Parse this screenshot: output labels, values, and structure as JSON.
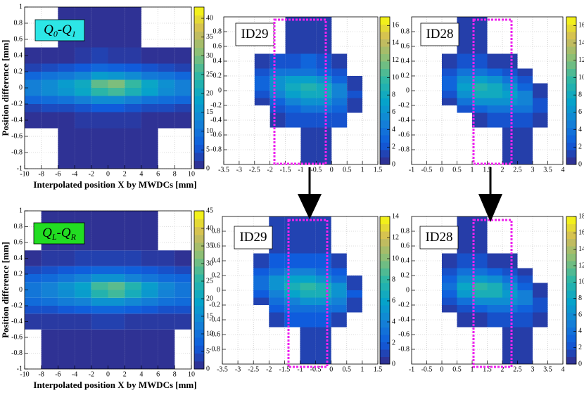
{
  "chart_data": [
    {
      "type": "heatmap",
      "label": [
        "Q",
        "0",
        "-Q",
        "1"
      ],
      "label_color": "#2de6e6",
      "ylabel": "Position difference [mm]",
      "xlabel": "Interpolated position X by MWDCs [mm]",
      "xlim": [
        -10,
        10
      ],
      "ylim": [
        -1,
        1
      ],
      "zlim": [
        0,
        43
      ],
      "grid": true,
      "xticks": [
        -10,
        -8,
        -6,
        -4,
        -2,
        0,
        2,
        4,
        6,
        8,
        10
      ],
      "yticks": [
        -1,
        -0.8,
        -0.6,
        -0.4,
        -0.2,
        0,
        0.2,
        0.4,
        0.6,
        0.8,
        1
      ],
      "zticks": [
        0,
        5,
        10,
        15,
        20,
        25,
        30,
        35,
        40
      ],
      "xbins": [
        -10,
        -8,
        -6,
        -4,
        -2,
        0,
        2,
        4,
        6,
        8,
        10
      ],
      "ybins": [
        -1,
        -0.5,
        -0.3,
        -0.2,
        -0.1,
        0,
        0.1,
        0.2,
        0.3,
        0.5,
        1
      ],
      "z": [
        [
          0,
          0,
          1,
          1,
          1,
          1,
          1,
          1,
          0,
          0
        ],
        [
          1,
          1,
          1,
          2,
          2,
          2,
          2,
          1,
          1,
          1
        ],
        [
          3,
          4,
          4,
          5,
          6,
          6,
          5,
          4,
          4,
          3
        ],
        [
          8,
          9,
          10,
          12,
          14,
          14,
          12,
          10,
          9,
          8
        ],
        [
          12,
          14,
          16,
          19,
          24,
          26,
          22,
          18,
          14,
          12
        ],
        [
          12,
          14,
          17,
          20,
          28,
          30,
          25,
          19,
          15,
          12
        ],
        [
          8,
          10,
          11,
          13,
          17,
          16,
          14,
          11,
          10,
          8
        ],
        [
          3,
          4,
          5,
          6,
          8,
          7,
          6,
          5,
          4,
          3
        ],
        [
          1,
          1,
          1,
          2,
          3,
          2,
          2,
          1,
          1,
          1
        ],
        [
          0,
          0,
          1,
          1,
          1,
          1,
          1,
          0,
          0,
          0
        ]
      ]
    },
    {
      "type": "heatmap",
      "label": [
        "ID29"
      ],
      "label_color": "#ffffff",
      "xlim": [
        -3.5,
        1.5
      ],
      "ylim": [
        -1,
        1
      ],
      "zlim": [
        0,
        17
      ],
      "grid": true,
      "xticks": [
        -3.5,
        -3,
        -2.5,
        -2,
        -1.5,
        -1,
        -0.5,
        0,
        0.5,
        1,
        1.5
      ],
      "yticks": [
        -0.8,
        -0.6,
        -0.4,
        -0.2,
        0,
        0.2,
        0.4,
        0.6,
        0.8
      ],
      "zticks": [
        0,
        2,
        4,
        6,
        8,
        10,
        12,
        14,
        16
      ],
      "xbins": [
        -3.5,
        -3,
        -2.5,
        -2,
        -1.5,
        -1,
        -0.5,
        0,
        0.5,
        1,
        1.5
      ],
      "ybins": [
        -1,
        -0.5,
        -0.3,
        -0.2,
        -0.1,
        0,
        0.1,
        0.2,
        0.3,
        0.5,
        1
      ],
      "z": [
        [
          0,
          0,
          0,
          0,
          0,
          1,
          1,
          0,
          0,
          0
        ],
        [
          0,
          0,
          0,
          1,
          2,
          2,
          2,
          2,
          0,
          0
        ],
        [
          0,
          0,
          0,
          2,
          3,
          4,
          4,
          3,
          1,
          0
        ],
        [
          0,
          0,
          1,
          3,
          5,
          6,
          6,
          4,
          1,
          0
        ],
        [
          0,
          0,
          2,
          5,
          7,
          8,
          8,
          5,
          2,
          0
        ],
        [
          0,
          0,
          3,
          6,
          8,
          9,
          8,
          5,
          1,
          0
        ],
        [
          0,
          0,
          3,
          6,
          7,
          7,
          6,
          3,
          1,
          0
        ],
        [
          0,
          0,
          2,
          4,
          4,
          4,
          3,
          2,
          0,
          0
        ],
        [
          0,
          0,
          1,
          2,
          2,
          3,
          2,
          1,
          0,
          0
        ],
        [
          0,
          0,
          0,
          0,
          1,
          1,
          1,
          0,
          0,
          0
        ]
      ]
    },
    {
      "type": "heatmap",
      "label": [
        "ID28"
      ],
      "label_color": "#ffffff",
      "xlim": [
        -1,
        4
      ],
      "ylim": [
        -1,
        1
      ],
      "zlim": [
        0,
        17
      ],
      "grid": true,
      "xticks": [
        -1,
        -0.5,
        0,
        0.5,
        1,
        1.5,
        2,
        2.5,
        3,
        3.5,
        4
      ],
      "yticks": [
        -0.8,
        -0.6,
        -0.4,
        -0.2,
        0,
        0.2,
        0.4,
        0.6,
        0.8
      ],
      "zticks": [
        0,
        2,
        4,
        6,
        8,
        10,
        12,
        14,
        16
      ],
      "xbins": [
        -1,
        -0.5,
        0,
        0.5,
        1,
        1.5,
        2,
        2.5,
        3,
        3.5,
        4
      ],
      "ybins": [
        -1,
        -0.5,
        -0.3,
        -0.2,
        -0.1,
        0,
        0.1,
        0.2,
        0.3,
        0.5,
        1
      ],
      "z": [
        [
          0,
          0,
          0,
          0,
          0,
          0,
          1,
          1,
          0,
          0
        ],
        [
          0,
          0,
          0,
          0,
          1,
          2,
          2,
          2,
          1,
          0
        ],
        [
          0,
          0,
          0,
          2,
          3,
          4,
          4,
          4,
          2,
          0
        ],
        [
          0,
          0,
          1,
          4,
          6,
          6,
          6,
          5,
          2,
          0
        ],
        [
          0,
          0,
          2,
          6,
          8,
          8,
          7,
          5,
          1,
          0
        ],
        [
          0,
          0,
          3,
          7,
          9,
          8,
          6,
          3,
          1,
          0
        ],
        [
          0,
          0,
          3,
          6,
          7,
          6,
          4,
          2,
          0,
          0
        ],
        [
          0,
          0,
          2,
          4,
          4,
          3,
          2,
          1,
          0,
          0
        ],
        [
          0,
          0,
          1,
          2,
          2,
          1,
          1,
          0,
          0,
          0
        ],
        [
          0,
          0,
          0,
          1,
          1,
          0,
          0,
          0,
          0,
          0
        ]
      ]
    },
    {
      "type": "heatmap",
      "label": [
        "Q",
        "L",
        "-Q",
        "R"
      ],
      "label_color": "#22dd22",
      "ylabel": "Position difference [mm]",
      "xlabel": "Interpolated position X by MWDCs [mm]",
      "xlim": [
        -10,
        10
      ],
      "ylim": [
        -1,
        1
      ],
      "zlim": [
        0,
        45
      ],
      "grid": true,
      "xticks": [
        -10,
        -8,
        -6,
        -4,
        -2,
        0,
        2,
        4,
        6,
        8,
        10
      ],
      "yticks": [
        -1,
        -0.8,
        -0.6,
        -0.4,
        -0.2,
        0,
        0.2,
        0.4,
        0.6,
        0.8,
        1
      ],
      "zticks": [
        0,
        5,
        10,
        15,
        20,
        25,
        30,
        35,
        40,
        45
      ],
      "xbins": [
        -10,
        -8,
        -6,
        -4,
        -2,
        0,
        2,
        4,
        6,
        8,
        10
      ],
      "ybins": [
        -1,
        -0.5,
        -0.3,
        -0.2,
        -0.1,
        0,
        0.1,
        0.2,
        0.3,
        0.5,
        1
      ],
      "z": [
        [
          0,
          1,
          1,
          1,
          1,
          1,
          1,
          1,
          1,
          0
        ],
        [
          2,
          2,
          2,
          2,
          3,
          3,
          2,
          2,
          2,
          2
        ],
        [
          5,
          5,
          6,
          7,
          8,
          8,
          7,
          6,
          5,
          5
        ],
        [
          9,
          10,
          12,
          13,
          16,
          16,
          14,
          12,
          10,
          9
        ],
        [
          11,
          13,
          15,
          18,
          24,
          27,
          22,
          17,
          13,
          11
        ],
        [
          11,
          13,
          16,
          19,
          27,
          29,
          24,
          18,
          14,
          11
        ],
        [
          8,
          9,
          11,
          13,
          16,
          16,
          13,
          11,
          9,
          8
        ],
        [
          4,
          5,
          6,
          7,
          8,
          8,
          7,
          6,
          5,
          4
        ],
        [
          1,
          2,
          2,
          3,
          3,
          3,
          3,
          2,
          2,
          1
        ],
        [
          0,
          1,
          1,
          1,
          1,
          1,
          1,
          1,
          0,
          0
        ]
      ]
    },
    {
      "type": "heatmap",
      "label": [
        "ID29"
      ],
      "label_color": "#ffffff",
      "xlim": [
        -3.5,
        1.5
      ],
      "ylim": [
        -1,
        1
      ],
      "zlim": [
        0,
        14
      ],
      "grid": true,
      "xticks": [
        -3.5,
        -3,
        -2.5,
        -2,
        -1.5,
        -1,
        -0.5,
        0,
        0.5,
        1,
        1.5
      ],
      "yticks": [
        -0.8,
        -0.6,
        -0.4,
        -0.2,
        0,
        0.2,
        0.4,
        0.6,
        0.8
      ],
      "zticks": [
        0,
        2,
        4,
        6,
        8,
        10,
        12,
        14
      ],
      "xbins": [
        -3.5,
        -3,
        -2.5,
        -2,
        -1.5,
        -1,
        -0.5,
        0,
        0.5,
        1,
        1.5
      ],
      "ybins": [
        -1,
        -0.5,
        -0.3,
        -0.2,
        -0.1,
        0,
        0.1,
        0.2,
        0.3,
        0.5,
        1
      ],
      "z": [
        [
          0,
          0,
          0,
          0,
          0,
          1,
          1,
          0,
          0,
          0
        ],
        [
          0,
          0,
          0,
          1,
          2,
          2,
          2,
          1,
          0,
          0
        ],
        [
          0,
          0,
          0,
          2,
          3,
          3,
          3,
          3,
          1,
          0
        ],
        [
          0,
          0,
          1,
          3,
          4,
          5,
          5,
          4,
          1,
          0
        ],
        [
          0,
          0,
          2,
          4,
          6,
          7,
          7,
          5,
          2,
          0
        ],
        [
          0,
          0,
          3,
          5,
          7,
          8,
          7,
          5,
          1,
          0
        ],
        [
          0,
          0,
          3,
          5,
          6,
          6,
          5,
          3,
          1,
          0
        ],
        [
          0,
          0,
          2,
          3,
          4,
          4,
          3,
          2,
          0,
          0
        ],
        [
          0,
          0,
          1,
          2,
          2,
          2,
          2,
          1,
          0,
          0
        ],
        [
          0,
          0,
          0,
          1,
          1,
          1,
          1,
          0,
          0,
          0
        ]
      ]
    },
    {
      "type": "heatmap",
      "label": [
        "ID28"
      ],
      "label_color": "#ffffff",
      "xlim": [
        -1,
        4
      ],
      "ylim": [
        -1,
        1
      ],
      "zlim": [
        0,
        18
      ],
      "grid": true,
      "xticks": [
        -1,
        -0.5,
        0,
        0.5,
        1,
        1.5,
        2,
        2.5,
        3,
        3.5,
        4
      ],
      "yticks": [
        -0.8,
        -0.6,
        -0.4,
        -0.2,
        0,
        0.2,
        0.4,
        0.6,
        0.8
      ],
      "zticks": [
        0,
        2,
        4,
        6,
        8,
        10,
        12,
        14,
        16,
        18
      ],
      "xbins": [
        -1,
        -0.5,
        0,
        0.5,
        1,
        1.5,
        2,
        2.5,
        3,
        3.5,
        4
      ],
      "ybins": [
        -1,
        -0.5,
        -0.3,
        -0.2,
        -0.1,
        0,
        0.1,
        0.2,
        0.3,
        0.5,
        1
      ],
      "z": [
        [
          0,
          0,
          0,
          0,
          0,
          0,
          1,
          1,
          0,
          0
        ],
        [
          0,
          0,
          0,
          1,
          1,
          2,
          2,
          2,
          1,
          0
        ],
        [
          0,
          0,
          1,
          2,
          3,
          4,
          4,
          3,
          2,
          0
        ],
        [
          0,
          0,
          2,
          4,
          6,
          6,
          6,
          5,
          2,
          0
        ],
        [
          0,
          0,
          3,
          7,
          9,
          9,
          7,
          5,
          1,
          0
        ],
        [
          0,
          0,
          4,
          8,
          10,
          9,
          6,
          3,
          1,
          0
        ],
        [
          0,
          0,
          3,
          6,
          7,
          6,
          4,
          2,
          0,
          0
        ],
        [
          0,
          0,
          2,
          4,
          4,
          3,
          2,
          1,
          0,
          0
        ],
        [
          0,
          0,
          1,
          2,
          2,
          1,
          1,
          0,
          0,
          0
        ],
        [
          0,
          0,
          0,
          1,
          1,
          0,
          0,
          0,
          0,
          0
        ]
      ]
    }
  ]
}
